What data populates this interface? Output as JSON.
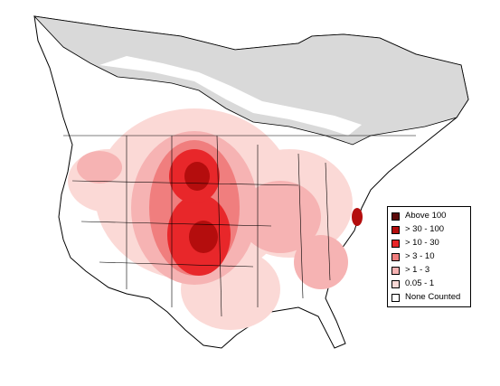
{
  "map": {
    "colors": {
      "no_range": "#d9d9d9",
      "border": "#000000",
      "land": "#ffffff"
    }
  },
  "legend": {
    "items": [
      {
        "label": "Above 100",
        "color": "#5c0a0a"
      },
      {
        "label": "> 30 - 100",
        "color": "#b40d0d"
      },
      {
        "label": "> 10 - 30",
        "color": "#e8272a"
      },
      {
        "label": "> 3 - 10",
        "color": "#f07e7e"
      },
      {
        "label": "> 1 - 3",
        "color": "#f6b3b3"
      },
      {
        "label": "0.05 - 1",
        "color": "#fbd9d6"
      },
      {
        "label": "None Counted",
        "color": "#ffffff"
      }
    ]
  }
}
